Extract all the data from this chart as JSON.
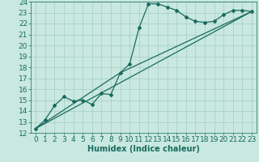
{
  "xlabel": "Humidex (Indice chaleur)",
  "bg_color": "#c8e8e0",
  "grid_color": "#a8ccc8",
  "line_color": "#1a6b60",
  "xlim": [
    -0.5,
    23.5
  ],
  "ylim": [
    12,
    24
  ],
  "xticks": [
    0,
    1,
    2,
    3,
    4,
    5,
    6,
    7,
    8,
    9,
    10,
    11,
    12,
    13,
    14,
    15,
    16,
    17,
    18,
    19,
    20,
    21,
    22,
    23
  ],
  "yticks": [
    12,
    13,
    14,
    15,
    16,
    17,
    18,
    19,
    20,
    21,
    22,
    23,
    24
  ],
  "curve1_x": [
    0,
    1,
    2,
    3,
    4,
    5,
    6,
    7,
    8,
    9,
    10,
    11,
    12,
    13,
    14,
    15,
    16,
    17,
    18,
    19,
    20,
    21,
    22,
    23
  ],
  "curve1_y": [
    12.4,
    13.2,
    14.5,
    15.3,
    14.9,
    15.0,
    14.6,
    15.6,
    15.5,
    17.5,
    18.3,
    21.6,
    23.8,
    23.8,
    23.5,
    23.2,
    22.6,
    22.2,
    22.1,
    22.2,
    22.8,
    23.2,
    23.2,
    23.1
  ],
  "line1_x": [
    0,
    23
  ],
  "line1_y": [
    12.4,
    23.1
  ],
  "line2_x": [
    0,
    9,
    23
  ],
  "line2_y": [
    12.4,
    17.5,
    23.1
  ],
  "font_size": 6.5,
  "xlabel_font_size": 7,
  "marker_size": 2.0,
  "line_width": 0.9
}
